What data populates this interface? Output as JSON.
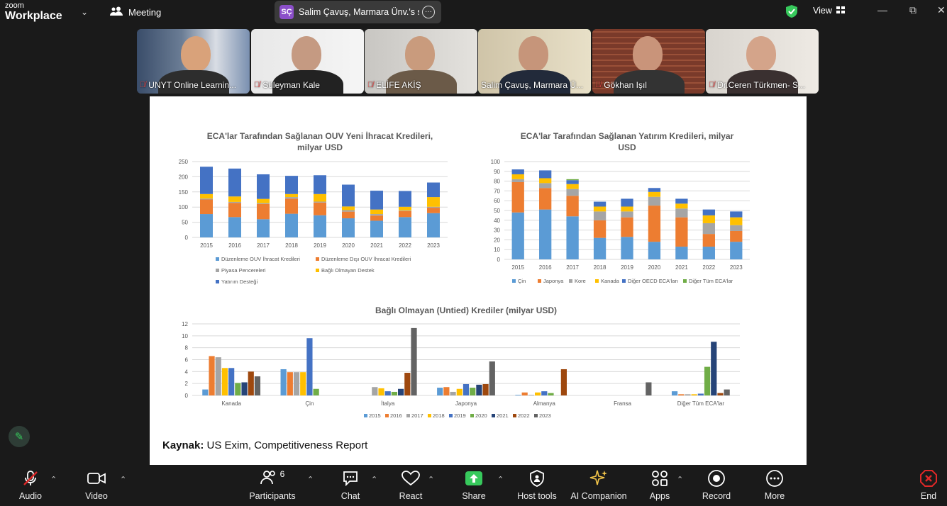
{
  "app": {
    "logo_line1": "zoom",
    "logo_line2": "Workplace",
    "meeting_label": "Meeting"
  },
  "share_pill": {
    "initials": "SÇ",
    "text": "Salim Çavuş, Marmara Ünv.'s scr"
  },
  "view_label": "View",
  "participants": [
    {
      "name": "UNYT Online Learnin...",
      "muted": true
    },
    {
      "name": "Süleyman Kale",
      "muted": true
    },
    {
      "name": "ELİFE AKİŞ",
      "muted": true
    },
    {
      "name": "Salim Çavuş, Marmara Ü...",
      "muted": false,
      "active": true
    },
    {
      "name": "Gökhan Işıl",
      "muted": true
    },
    {
      "name": "Dr.Ceren Türkmen- S...",
      "muted": true
    }
  ],
  "chart_data": [
    {
      "type": "bar",
      "stacked": true,
      "title": "ECA'lar Tarafından Sağlanan OUV Yeni İhracat Kredileri, milyar USD",
      "title_lines": [
        "ECA'lar Tarafından Sağlanan OUV Yeni İhracat Kredileri,",
        "milyar USD"
      ],
      "categories": [
        "2015",
        "2016",
        "2017",
        "2018",
        "2019",
        "2020",
        "2021",
        "2022",
        "2023"
      ],
      "ylim": [
        0,
        250
      ],
      "yticks": [
        "0",
        "50",
        "100",
        "150",
        "200",
        "250"
      ],
      "legend_position": "bottom",
      "series": [
        {
          "name": "Düzenleme OUV İhracat Kredileri",
          "color": "#5b9bd5",
          "values": [
            77,
            67,
            60,
            78,
            73,
            63,
            55,
            67,
            80
          ]
        },
        {
          "name": "Düzenleme Dışı OUV İhracat Kredileri",
          "color": "#ed7d31",
          "values": [
            48,
            47,
            50,
            50,
            42,
            22,
            17,
            20,
            18
          ]
        },
        {
          "name": "Piyasa Pencereleri",
          "color": "#a5a5a5",
          "values": [
            3,
            3,
            3,
            5,
            3,
            5,
            5,
            2,
            3
          ]
        },
        {
          "name": "Bağlı Olmayan Destek",
          "color": "#ffc000",
          "values": [
            15,
            18,
            14,
            10,
            25,
            12,
            15,
            12,
            32
          ]
        },
        {
          "name": "Yatırım Desteği",
          "color": "#4472c4",
          "values": [
            90,
            92,
            81,
            60,
            62,
            72,
            62,
            52,
            48
          ]
        }
      ]
    },
    {
      "type": "bar",
      "stacked": true,
      "title": "ECA'lar Tarafından Sağlanan Yatırım Kredileri, milyar USD",
      "title_lines": [
        "ECA'lar Tarafından Sağlanan Yatırım Kredileri, milyar",
        "USD"
      ],
      "categories": [
        "2015",
        "2016",
        "2017",
        "2018",
        "2019",
        "2020",
        "2021",
        "2022",
        "2023"
      ],
      "ylim": [
        0,
        100
      ],
      "yticks": [
        "0",
        "10",
        "20",
        "30",
        "40",
        "50",
        "60",
        "70",
        "80",
        "90",
        "100"
      ],
      "legend_position": "bottom",
      "series": [
        {
          "name": "Çin",
          "color": "#5b9bd5",
          "values": [
            48,
            51,
            44,
            22,
            23,
            18,
            13,
            13,
            18
          ]
        },
        {
          "name": "Japonya",
          "color": "#ed7d31",
          "values": [
            31,
            22,
            21,
            18,
            20,
            37,
            30,
            13,
            11
          ]
        },
        {
          "name": "Kore",
          "color": "#a5a5a5",
          "values": [
            3,
            5,
            7,
            9,
            6,
            9,
            9,
            11,
            6
          ]
        },
        {
          "name": "Kanada",
          "color": "#ffc000",
          "values": [
            5,
            5,
            5,
            5,
            5,
            5,
            5,
            8,
            8
          ]
        },
        {
          "name": "Diğer OECD ECA'ları",
          "color": "#4472c4",
          "values": [
            5,
            8,
            4,
            5,
            8,
            4,
            5,
            6,
            6
          ]
        },
        {
          "name": "Diğer Tüm ECA'lar",
          "color": "#70ad47",
          "values": [
            0,
            0,
            1,
            0,
            0,
            0,
            0,
            0,
            0
          ]
        }
      ]
    },
    {
      "type": "bar",
      "stacked": false,
      "title": "Bağlı Olmayan (Untied) Krediler (milyar USD)",
      "categories": [
        "Kanada",
        "Çin",
        "İtalya",
        "Japonya",
        "Almanya",
        "Fransa",
        "Diğer Tüm ECA'lar"
      ],
      "ylim": [
        0,
        12
      ],
      "yticks": [
        "0",
        "2",
        "4",
        "6",
        "8",
        "10",
        "12"
      ],
      "legend_position": "bottom",
      "series": [
        {
          "name": "2015",
          "color": "#5b9bd5",
          "values": [
            1.0,
            4.4,
            0,
            1.3,
            0.1,
            0,
            0.7
          ]
        },
        {
          "name": "2016",
          "color": "#ed7d31",
          "values": [
            6.6,
            3.9,
            0,
            1.4,
            0.5,
            0,
            0.2
          ]
        },
        {
          "name": "2017",
          "color": "#a5a5a5",
          "values": [
            6.4,
            3.9,
            1.4,
            0.6,
            0.1,
            0,
            0.2
          ]
        },
        {
          "name": "2018",
          "color": "#ffc000",
          "values": [
            4.6,
            3.9,
            1.2,
            1.1,
            0.5,
            0,
            0.2
          ]
        },
        {
          "name": "2019",
          "color": "#4472c4",
          "values": [
            4.6,
            9.6,
            0.7,
            1.9,
            0.7,
            0,
            0.3
          ]
        },
        {
          "name": "2020",
          "color": "#70ad47",
          "values": [
            2.1,
            1.1,
            0.6,
            1.3,
            0.4,
            0,
            4.8
          ]
        },
        {
          "name": "2021",
          "color": "#264478",
          "values": [
            2.2,
            0,
            1.1,
            1.8,
            0,
            0,
            9.0
          ]
        },
        {
          "name": "2022",
          "color": "#9e480e",
          "values": [
            4.0,
            0,
            3.8,
            1.9,
            4.4,
            0,
            0.4
          ]
        },
        {
          "name": "2023",
          "color": "#636363",
          "values": [
            3.2,
            0,
            11.3,
            5.7,
            0,
            2.2,
            1.0
          ]
        }
      ]
    }
  ],
  "source": {
    "label": "Kaynak:",
    "text": " US Exim, Competitiveness Report"
  },
  "toolbar": {
    "audio": "Audio",
    "video": "Video",
    "participants": "Participants",
    "participants_count": "6",
    "chat": "Chat",
    "react": "React",
    "share": "Share",
    "host_tools": "Host tools",
    "ai_companion": "AI Companion",
    "apps": "Apps",
    "record": "Record",
    "more": "More",
    "end": "End"
  },
  "colors": {
    "active_border": "#37c95c",
    "share_green": "#37c95c",
    "end_red": "#e02828"
  }
}
